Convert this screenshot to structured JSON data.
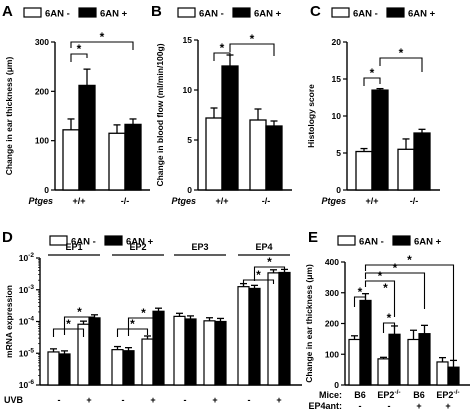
{
  "legend": {
    "minus": "6AN -",
    "plus": "6AN +"
  },
  "colors": {
    "minus": "#ffffff",
    "plus": "#000000",
    "stroke": "#000000"
  },
  "chart_data": [
    {
      "panel": "A",
      "type": "bar",
      "ylabel": "Change in ear thickness (μm)",
      "ylim": [
        0,
        300
      ],
      "yticks": [
        "0",
        "100",
        "200",
        "300"
      ],
      "group_title": "Ptges",
      "categories": [
        "+/+",
        "-/-"
      ],
      "series": [
        {
          "name": "6AN -",
          "values": [
            122,
            115
          ],
          "errors": [
            22,
            17
          ]
        },
        {
          "name": "6AN +",
          "values": [
            212,
            133
          ],
          "errors": [
            33,
            11
          ]
        }
      ],
      "significance": [
        "*",
        "*"
      ]
    },
    {
      "panel": "B",
      "type": "bar",
      "ylabel": "Change in blood flow (ml/min/100g)",
      "ylim": [
        0,
        15
      ],
      "yticks": [
        "0",
        "5",
        "10",
        "15"
      ],
      "group_title": "Ptges",
      "categories": [
        "+/+",
        "-/-"
      ],
      "series": [
        {
          "name": "6AN -",
          "values": [
            7.2,
            7.0
          ],
          "errors": [
            1.0,
            1.1
          ]
        },
        {
          "name": "6AN +",
          "values": [
            12.4,
            6.4
          ],
          "errors": [
            1.1,
            0.5
          ]
        }
      ],
      "significance": [
        "*",
        "*"
      ]
    },
    {
      "panel": "C",
      "type": "bar",
      "ylabel": "Histology score",
      "ylim": [
        0,
        20
      ],
      "yticks": [
        "0",
        "5",
        "10",
        "15",
        "20"
      ],
      "group_title": "Ptges",
      "categories": [
        "+/+",
        "-/-"
      ],
      "series": [
        {
          "name": "6AN -",
          "values": [
            5.2,
            5.5
          ],
          "errors": [
            0.4,
            1.4
          ]
        },
        {
          "name": "6AN +",
          "values": [
            13.5,
            7.7
          ],
          "errors": [
            0.2,
            0.5
          ]
        }
      ],
      "significance": [
        "*",
        "*"
      ]
    },
    {
      "panel": "D",
      "type": "bar",
      "yscale": "log",
      "ylabel": "mRNA expression",
      "ylim": [
        1e-06,
        0.01
      ],
      "ytick_bases": [
        "10",
        "10",
        "10",
        "10",
        "10"
      ],
      "ytick_exps": [
        "-6",
        "-5",
        "-4",
        "-3",
        "-2"
      ],
      "group_labels": [
        "EP1",
        "EP2",
        "EP3",
        "EP4"
      ],
      "xrow_title": "UVB",
      "xrow_labels": [
        "-",
        "+",
        "-",
        "+",
        "-",
        "+",
        "-",
        "+"
      ],
      "series": [
        {
          "name": "6AN -",
          "values": [
            1.1e-05,
            8.2e-05,
            1.3e-05,
            2.8e-05,
            0.000145,
            0.000105,
            0.00125,
            0.0034
          ]
        },
        {
          "name": "6AN +",
          "values": [
            9.5e-06,
            0.00013,
            1.2e-05,
            0.00021,
            0.00012,
            0.0001,
            0.0011,
            0.0035
          ]
        }
      ],
      "significance": [
        "*",
        "*",
        "*",
        "*",
        "*",
        "*"
      ]
    },
    {
      "panel": "E",
      "type": "bar",
      "ylabel": "Change in ear thickness (μm)",
      "ylim": [
        0,
        400
      ],
      "yticks": [
        "0",
        "100",
        "200",
        "300",
        "400"
      ],
      "row1_title": "Mice:",
      "row2_title": "EP4ant:",
      "categories": [
        "B6",
        "EP2",
        "B6",
        "EP2"
      ],
      "category_sup": [
        "",
        "-/-",
        "",
        "-/-"
      ],
      "row2_labels": [
        "-",
        "-",
        "+",
        "+"
      ],
      "series": [
        {
          "name": "6AN -",
          "values": [
            148,
            85,
            148,
            75
          ],
          "errors": [
            12,
            5,
            30,
            14
          ]
        },
        {
          "name": "6AN +",
          "values": [
            275,
            165,
            167,
            58
          ],
          "errors": [
            22,
            27,
            27,
            22
          ]
        }
      ],
      "significance": [
        "*",
        "*",
        "*",
        "*",
        "*",
        "*"
      ]
    }
  ]
}
